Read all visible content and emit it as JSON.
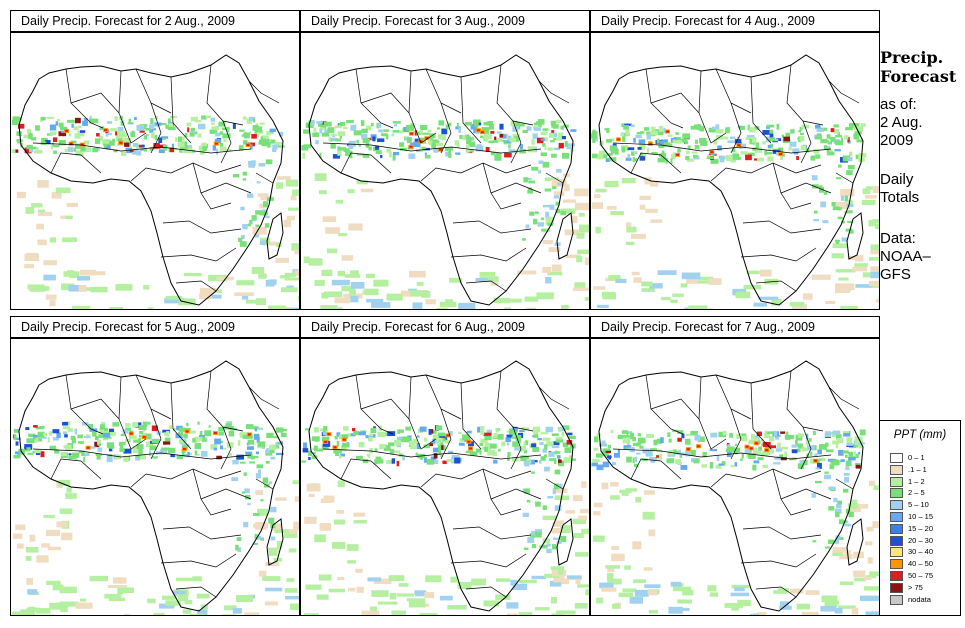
{
  "panels": [
    {
      "title": "Daily Precip. Forecast for  2 Aug., 2009"
    },
    {
      "title": "Daily Precip. Forecast for  3 Aug., 2009"
    },
    {
      "title": "Daily Precip. Forecast for  4 Aug., 2009"
    },
    {
      "title": "Daily Precip. Forecast for  5 Aug., 2009"
    },
    {
      "title": "Daily Precip. Forecast for  6 Aug., 2009"
    },
    {
      "title": "Daily Precip. Forecast for  7 Aug., 2009"
    }
  ],
  "side": {
    "title_line1": "Precip.",
    "title_line2": "Forecast",
    "asof_line1": "as of:",
    "asof_line2": "2 Aug.",
    "asof_line3": "2009",
    "daily_line1": "Daily",
    "daily_line2": "Totals",
    "data_line1": "Data:",
    "data_line2": "NOAA–",
    "data_line3": "GFS"
  },
  "legend": {
    "title": "PPT (mm)",
    "items": [
      {
        "label": "0 – 1",
        "color": "#ffffff"
      },
      {
        "label": ".1 – 1",
        "color": "#f0dcc0"
      },
      {
        "label": "1 – 2",
        "color": "#b4f0a0"
      },
      {
        "label": "2 – 5",
        "color": "#78e078"
      },
      {
        "label": "5 – 10",
        "color": "#a0d2f0"
      },
      {
        "label": "10 – 15",
        "color": "#64aaf0"
      },
      {
        "label": "15 – 20",
        "color": "#3c82e6"
      },
      {
        "label": "20 – 30",
        "color": "#1e50d2"
      },
      {
        "label": "30 – 40",
        "color": "#ffe678"
      },
      {
        "label": "40 – 50",
        "color": "#ff9600"
      },
      {
        "label": "50 – 75",
        "color": "#dc1e1e"
      },
      {
        "label": "> 75",
        "color": "#8c1414"
      },
      {
        "label": "nodata",
        "color": "#c8c8c8"
      }
    ]
  }
}
